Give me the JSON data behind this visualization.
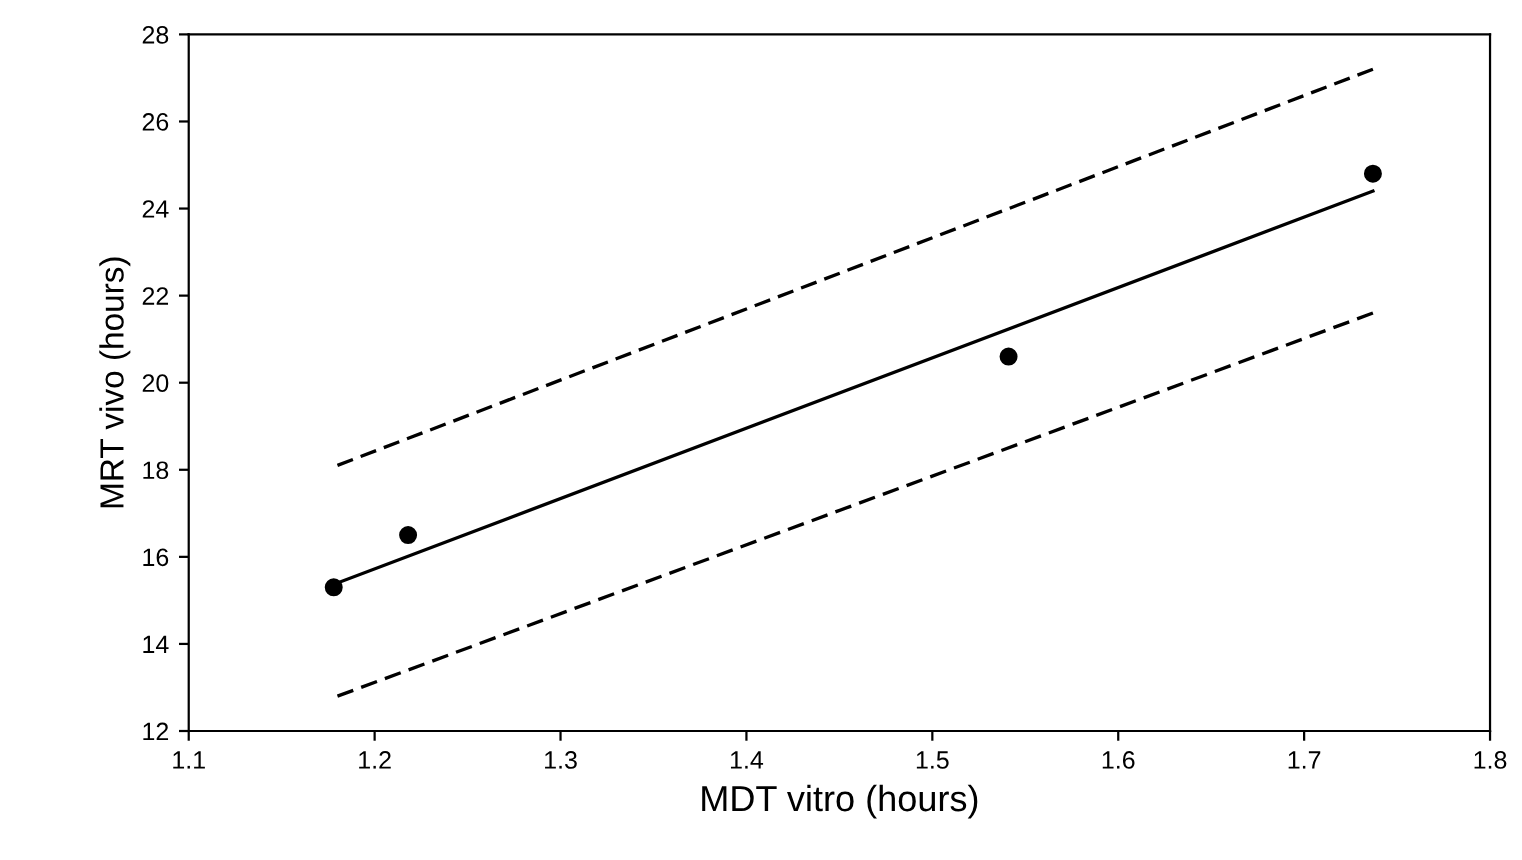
{
  "chart_data": {
    "type": "scatter",
    "xlabel": "MDT vitro (hours)",
    "ylabel": "MRT vivo (hours)",
    "xlim": [
      1.1,
      1.8
    ],
    "xticks": [
      1.1,
      1.2,
      1.3,
      1.4,
      1.5,
      1.6,
      1.7,
      1.8
    ],
    "ylim": [
      12,
      28
    ],
    "yticks": [
      12,
      14,
      16,
      18,
      20,
      22,
      24,
      26,
      28
    ],
    "grid": false,
    "legend": false,
    "series": [
      {
        "color": "#000000",
        "marker": "circle",
        "x": [
          1.178,
          1.218,
          1.541,
          1.737
        ],
        "values": [
          15.3,
          16.5,
          20.6,
          24.8
        ]
      },
      {
        "type": "line",
        "color": "#000000",
        "line_style": "solid",
        "marker": "none",
        "x": [
          1.18,
          1.737
        ],
        "values": [
          15.4,
          24.4
        ]
      },
      {
        "type": "line",
        "color": "#000000",
        "line_style": "dashed",
        "marker": "none",
        "x": [
          1.18,
          1.737
        ],
        "values": [
          18.1,
          27.2
        ]
      },
      {
        "type": "line",
        "color": "#000000",
        "line_style": "dashed",
        "marker": "none",
        "x": [
          1.18,
          1.737
        ],
        "values": [
          12.8,
          21.6
        ]
      }
    ]
  }
}
